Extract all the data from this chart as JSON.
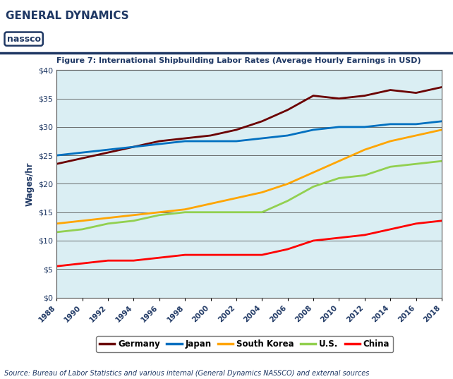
{
  "title": "Figure 7: International Shipbuilding Labor Rates (Average Hourly Earnings in USD)",
  "ylabel": "Wages/hr",
  "source": "Source: Bureau of Labor Statistics and various internal (General Dynamics NASSCO) and external sources",
  "header_title": "GENERAL DYNAMICS",
  "header_subtitle": "nassco",
  "years": [
    1988,
    1990,
    1992,
    1994,
    1996,
    1998,
    2000,
    2002,
    2004,
    2006,
    2008,
    2010,
    2012,
    2014,
    2016,
    2018
  ],
  "Germany": [
    23.5,
    24.5,
    25.5,
    26.5,
    27.5,
    28.0,
    28.5,
    29.5,
    31.0,
    33.0,
    35.5,
    35.0,
    35.5,
    36.5,
    36.0,
    37.0
  ],
  "Japan": [
    25.0,
    25.5,
    26.0,
    26.5,
    27.0,
    27.5,
    27.5,
    27.5,
    28.0,
    28.5,
    29.5,
    30.0,
    30.0,
    30.5,
    30.5,
    31.0
  ],
  "South_Korea": [
    13.0,
    13.5,
    14.0,
    14.5,
    15.0,
    15.5,
    16.5,
    17.5,
    18.5,
    20.0,
    22.0,
    24.0,
    26.0,
    27.5,
    28.5,
    29.5
  ],
  "US": [
    11.5,
    12.0,
    13.0,
    13.5,
    14.5,
    15.0,
    15.0,
    15.0,
    15.0,
    17.0,
    19.5,
    21.0,
    21.5,
    23.0,
    23.5,
    24.0
  ],
  "China": [
    5.5,
    6.0,
    6.5,
    6.5,
    7.0,
    7.5,
    7.5,
    7.5,
    7.5,
    8.5,
    10.0,
    10.5,
    11.0,
    12.0,
    13.0,
    13.5
  ],
  "colors": {
    "Germany": "#6B0000",
    "Japan": "#0070C0",
    "South_Korea": "#FFA500",
    "US": "#92D050",
    "China": "#FF0000"
  },
  "ylim": [
    0,
    40
  ],
  "yticks": [
    0,
    5,
    10,
    15,
    20,
    25,
    30,
    35,
    40
  ],
  "bg_color": "#DAEEF3",
  "plot_bg": "#DAEEF3",
  "header_bg": "#FFFFFF",
  "line_width": 2.0
}
